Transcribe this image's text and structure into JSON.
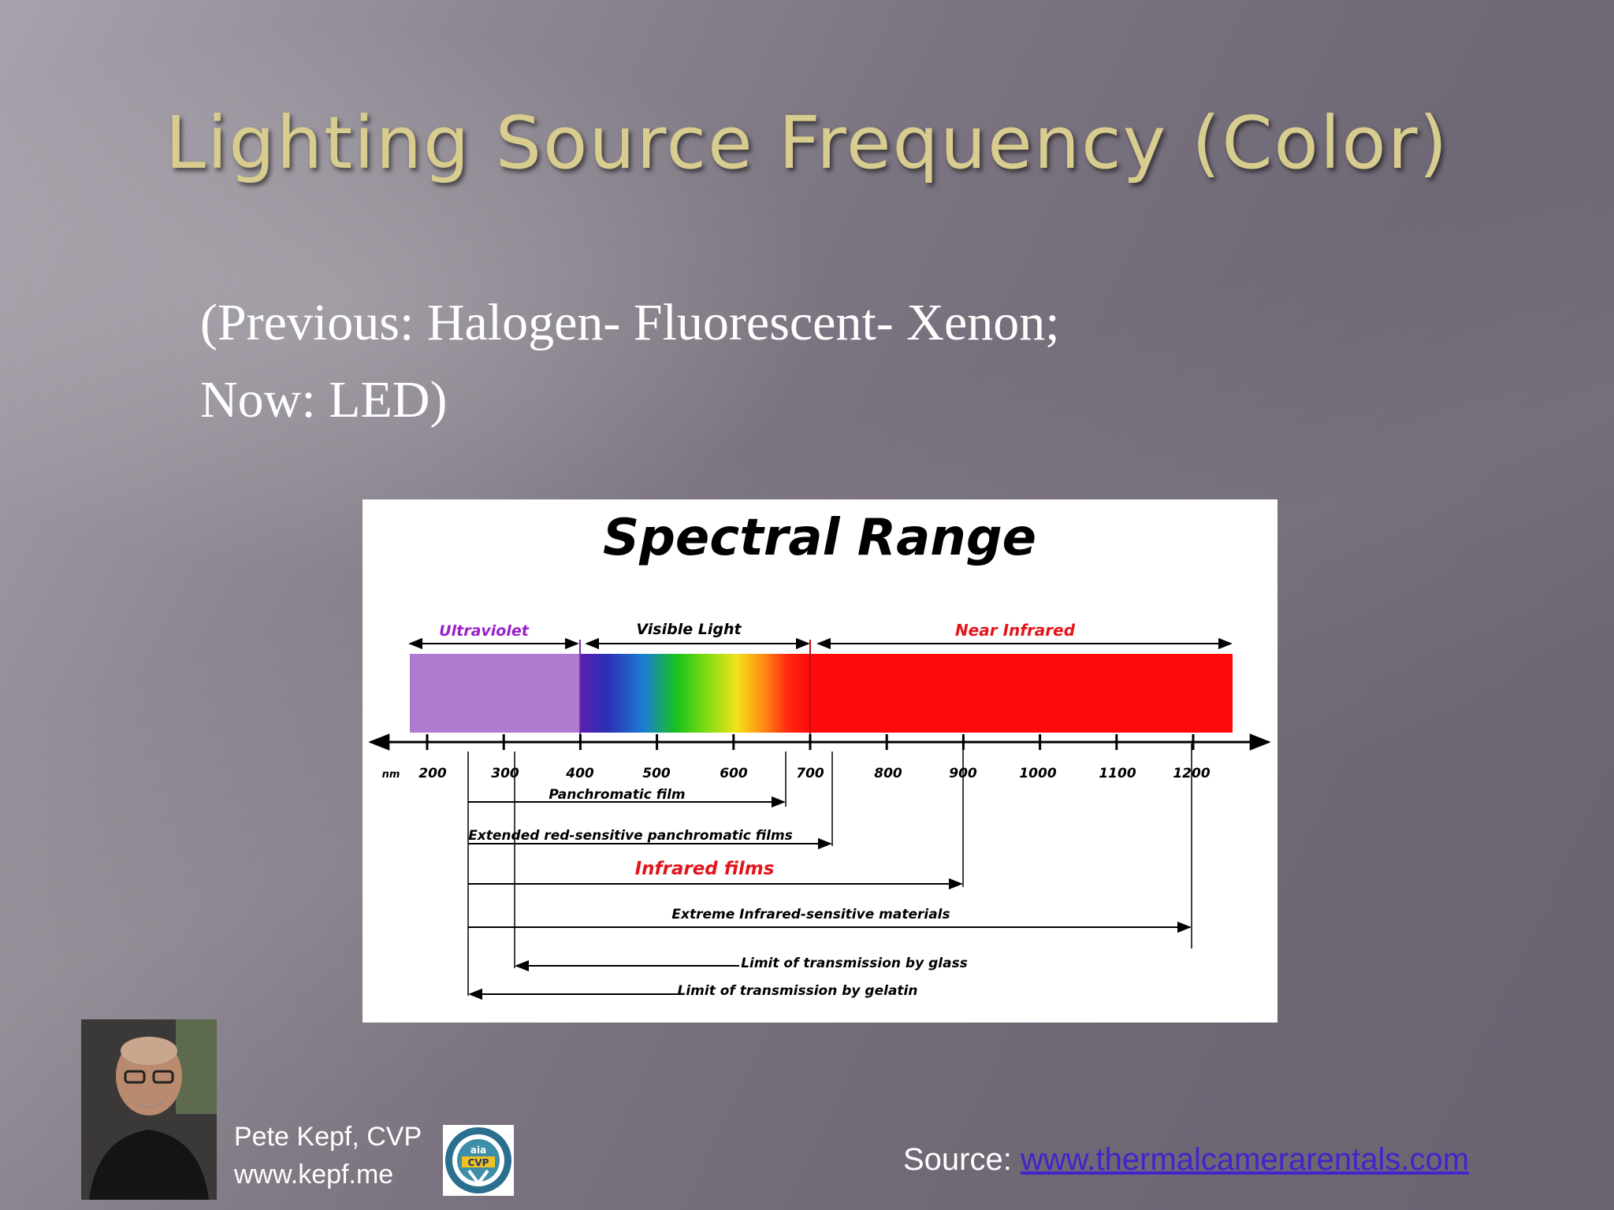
{
  "slide": {
    "title": "Lighting Source Frequency (Color)",
    "subtitle_line1": "(Previous: Halogen- Fluorescent- Xenon;",
    "subtitle_line2": "Now: LED)"
  },
  "figure": {
    "title": "Spectral Range",
    "bands": {
      "uv": "Ultraviolet",
      "visible": "Visible Light",
      "nir": "Near Infrared"
    },
    "unit": "nm",
    "ticks": [
      "200",
      "300",
      "400",
      "500",
      "600",
      "700",
      "800",
      "900",
      "1000",
      "1100",
      "1200"
    ],
    "ranges": {
      "panchromatic": "Panchromatic film",
      "extended": "Extended red-sensitive panchromatic films",
      "infrared": "Infrared films",
      "extreme": "Extreme Infrared-sensitive materials",
      "glass": "Limit of transmission by glass",
      "gelatin": "Limit of transmission by gelatin"
    },
    "colors": {
      "uv": "#b07ad0",
      "nir": "#ff0a0a",
      "uv_label": "#9a1fc8",
      "red_label": "#e3141b"
    }
  },
  "footer": {
    "author_name": "Pete Kepf, CVP",
    "author_site": "www.kepf.me",
    "badge_text": "CVP",
    "badge_org": "aia",
    "source_prefix": "Source: ",
    "source_link": "www.thermalcamerarentals.com"
  }
}
